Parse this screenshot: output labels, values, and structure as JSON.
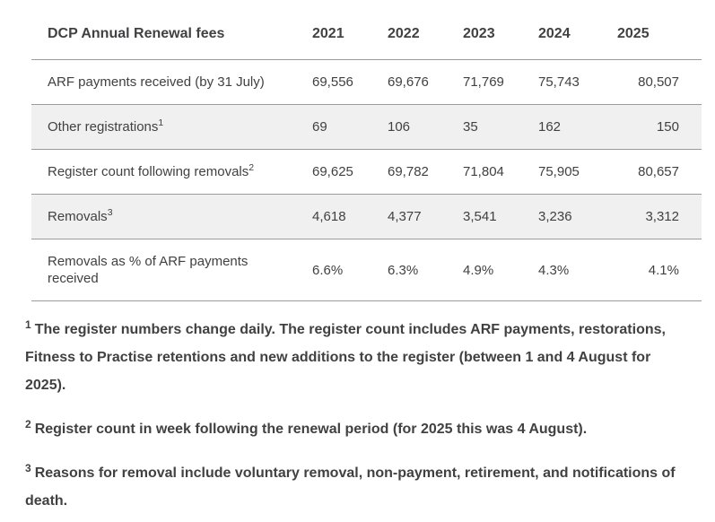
{
  "colors": {
    "text": "#414042",
    "border": "#9b9b9b",
    "zebra_row_bg": "#f0f0f0",
    "page_bg": "#ffffff"
  },
  "table": {
    "title": "DCP Annual Renewal fees",
    "columns": [
      "2021",
      "2022",
      "2023",
      "2024",
      "2025"
    ],
    "rows": [
      {
        "label": "ARF payments received (by 31 July)",
        "sup": "",
        "values": [
          "69,556",
          "69,676",
          "71,769",
          "75,743",
          "80,507"
        ]
      },
      {
        "label": "Other registrations",
        "sup": "1",
        "values": [
          "69",
          "106",
          "35",
          "162",
          "150"
        ]
      },
      {
        "label": "Register count following removals",
        "sup": "2",
        "values": [
          "69,625",
          "69,782",
          "71,804",
          "75,905",
          "80,657"
        ]
      },
      {
        "label": "Removals",
        "sup": "3",
        "values": [
          "4,618",
          "4,377",
          "3,541",
          "3,236",
          "3,312"
        ]
      },
      {
        "label": "Removals as % of ARF payments received",
        "sup": "",
        "values": [
          "6.6%",
          "6.3%",
          "4.9%",
          "4.3%",
          "4.1%"
        ]
      }
    ]
  },
  "footnotes": [
    {
      "sup": "1",
      "text": "The register numbers change daily. The register count includes ARF payments, restorations, Fitness to Practise retentions and new additions to the register (between 1 and 4 August for 2025)."
    },
    {
      "sup": "2",
      "text": "Register count in week following the renewal period (for 2025 this was 4 August)."
    },
    {
      "sup": "3",
      "text": "Reasons for removal include voluntary removal, non-payment, retirement, and notifications of death."
    }
  ]
}
